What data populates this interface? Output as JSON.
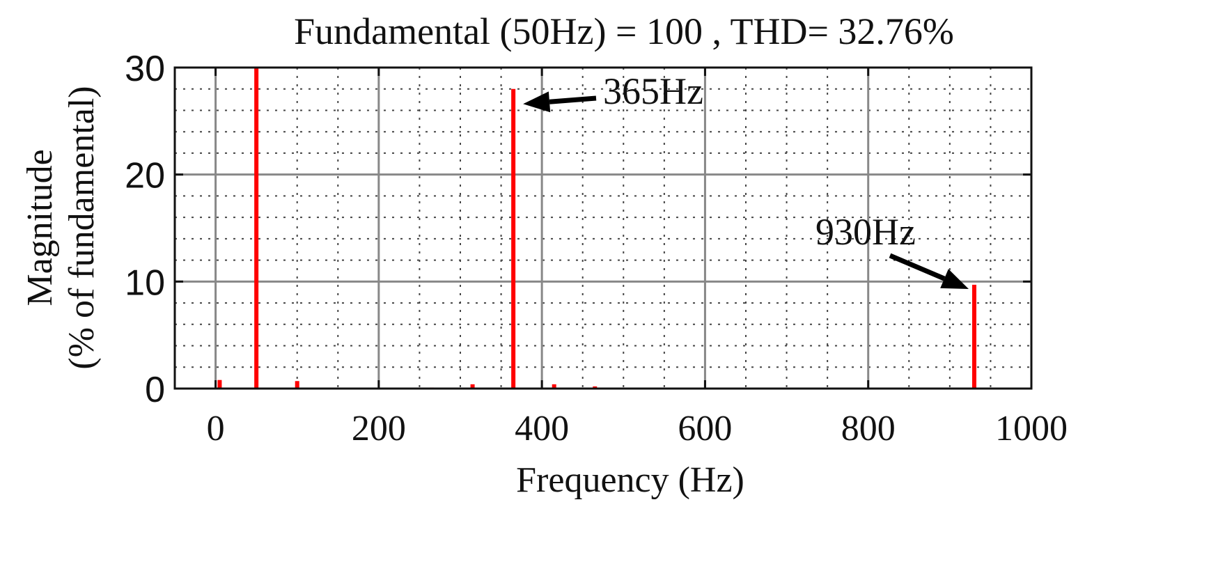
{
  "chart_data": {
    "type": "bar",
    "title": "Fundamental (50Hz) = 100 , THD= 32.76%",
    "xlabel": "Frequency (Hz)",
    "ylabel_line1": "Magnitude",
    "ylabel_line2": "(% of fundamental)",
    "xlim": [
      -50,
      1000
    ],
    "ylim": [
      0,
      30
    ],
    "xticks": [
      0,
      200,
      400,
      600,
      800,
      1000
    ],
    "xtick_labels": [
      "0",
      "200",
      "400",
      "600",
      "800",
      "1000"
    ],
    "yticks": [
      0,
      10,
      20,
      30
    ],
    "ytick_labels": [
      "0",
      "10",
      "20",
      "30"
    ],
    "grid": true,
    "bar_color": "#ff0000",
    "series": [
      {
        "x": [
          5,
          50,
          100,
          265,
          315,
          365,
          415,
          465,
          930
        ],
        "values": [
          0.8,
          30,
          0.7,
          0.1,
          0.4,
          28,
          0.4,
          0.2,
          9.7
        ]
      }
    ],
    "annotations": [
      {
        "text": "365Hz",
        "x": 365,
        "y": 28
      },
      {
        "text": "930Hz",
        "x": 930,
        "y": 9.7
      }
    ]
  }
}
